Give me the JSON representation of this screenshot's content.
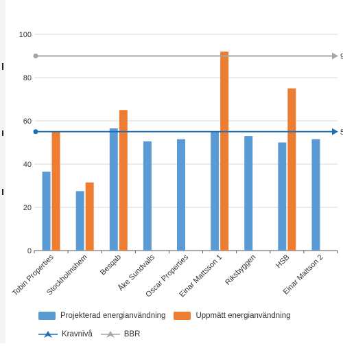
{
  "chart_data": {
    "type": "bar",
    "title": "",
    "xlabel": "",
    "ylabel": "",
    "ylim": [
      0,
      100
    ],
    "yticks": [
      0,
      20,
      40,
      60,
      80,
      100
    ],
    "categories": [
      "Tobin Properties",
      "Stockholmshem",
      "Besqab",
      "Åke Sundvalls",
      "Oscar Properties",
      "Einar Mattsson 1",
      "Riksbyggen",
      "HSB",
      "Einar Mattson 2"
    ],
    "series": [
      {
        "name": "Projekterad energianvändning",
        "color": "#5b9bd5",
        "values": [
          36.5,
          27.5,
          56.5,
          50.5,
          51.5,
          55,
          53,
          50,
          51.5
        ]
      },
      {
        "name": "Uppmätt energianvändning",
        "color": "#ed7d31",
        "values": [
          55,
          31.5,
          65,
          null,
          null,
          92,
          null,
          75,
          null
        ]
      }
    ],
    "reference_lines": [
      {
        "name": "Kravnivå",
        "value": 55,
        "color": "#1a6fb5",
        "label": "5"
      },
      {
        "name": "BBR",
        "value": 90,
        "color": "#a6a6a6",
        "label": "9"
      }
    ],
    "grid": true,
    "legend_position": "bottom"
  }
}
